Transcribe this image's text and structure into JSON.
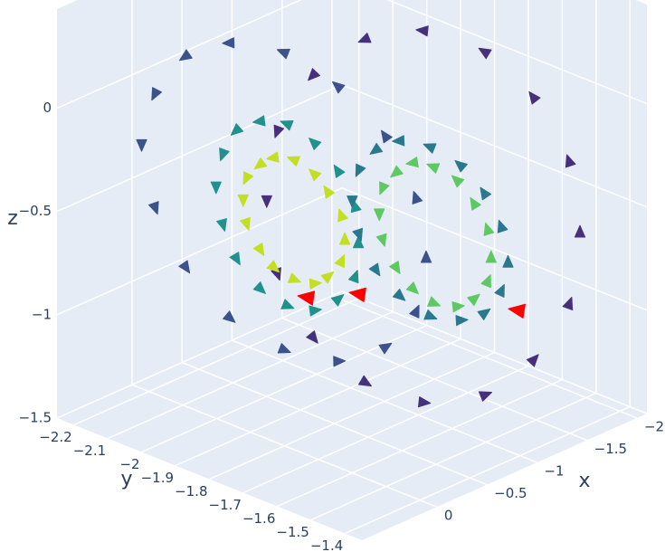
{
  "chart_data": {
    "type": "cone",
    "xlabel": "x",
    "ylabel": "y",
    "zlabel": "z",
    "xlim": [
      0.75,
      -2.1
    ],
    "ylim": [
      -1.35,
      -2.25
    ],
    "zlim": [
      -1.5,
      0.48
    ],
    "xticks": [
      0,
      {
        "value": -0.5,
        "label": "−0.5"
      },
      {
        "value": -1,
        "label": "−1"
      },
      {
        "value": -1.5,
        "label": "−1.5"
      },
      {
        "value": -2,
        "label": "−2"
      }
    ],
    "yticks": [
      {
        "value": -2.2,
        "label": "−2.2"
      },
      {
        "value": -2.1,
        "label": "−2.1"
      },
      {
        "value": -2,
        "label": "−2"
      },
      {
        "value": -1.9,
        "label": "−1.9"
      },
      {
        "value": -1.8,
        "label": "−1.8"
      },
      {
        "value": -1.7,
        "label": "−1.7"
      },
      {
        "value": -1.6,
        "label": "−1.6"
      },
      {
        "value": -1.5,
        "label": "−1.5"
      },
      {
        "value": -1.4,
        "label": "−1.4"
      }
    ],
    "zticks": [
      {
        "value": -1.5,
        "label": "−1.5"
      },
      {
        "value": -1,
        "label": "−1"
      },
      {
        "value": -0.5,
        "label": "−0.5"
      },
      0
    ],
    "grid": true,
    "series": [
      {
        "color": "#46307e",
        "x": [
          -1.6,
          -1.56,
          -1.44,
          -1.26,
          -1.05,
          -0.84,
          -0.66,
          -0.54,
          -0.5,
          -0.54,
          -0.66,
          -0.84,
          -1.05,
          -1.26,
          -1.44,
          -1.56
        ],
        "y": [
          -1.4,
          -1.42,
          -1.49,
          -1.58,
          -1.7,
          -1.81,
          -1.91,
          -1.98,
          -2.0,
          -1.98,
          -1.91,
          -1.81,
          -1.7,
          -1.58,
          -1.49,
          -1.42
        ],
        "z": [
          -0.55,
          -0.21,
          0.08,
          0.28,
          0.35,
          0.28,
          0.08,
          -0.21,
          -0.55,
          -0.9,
          -1.19,
          -1.38,
          -1.45,
          -1.38,
          -1.19,
          -0.9
        ]
      },
      {
        "color": "#3b528b",
        "x": [
          0.04,
          0.04,
          0.04,
          0.04,
          0.04,
          0.04,
          0.04,
          0.04,
          0.04,
          0.04,
          0.04,
          0.04,
          0.04,
          0.04,
          0.04,
          0.04
        ],
        "y": [
          -1.37,
          -1.4,
          -1.49,
          -1.63,
          -1.79,
          -1.95,
          -2.08,
          -2.17,
          -2.21,
          -2.17,
          -2.08,
          -1.95,
          -1.79,
          -1.63,
          -1.49,
          -1.4
        ],
        "z": [
          -0.3,
          -0.03,
          0.21,
          0.36,
          0.42,
          0.36,
          0.21,
          -0.03,
          -0.3,
          -0.58,
          -0.81,
          -0.97,
          -1.02,
          -0.97,
          -0.81,
          -0.58
        ]
      },
      {
        "color": "#21918c",
        "x": [
          0.04,
          0.04,
          0.04,
          0.04,
          0.04,
          0.04,
          0.04,
          0.04,
          0.04,
          0.04,
          0.04,
          0.04,
          0.04,
          0.04,
          0.04,
          0.04
        ],
        "y": [
          -1.57,
          -1.58,
          -1.63,
          -1.7,
          -1.78,
          -1.86,
          -1.93,
          -1.97,
          -1.99,
          -1.97,
          -1.93,
          -1.86,
          -1.78,
          -1.7,
          -1.63,
          -1.58
        ],
        "z": [
          -0.36,
          -0.19,
          -0.05,
          0.04,
          0.08,
          0.04,
          -0.05,
          -0.19,
          -0.36,
          -0.53,
          -0.67,
          -0.77,
          -0.8,
          -0.77,
          -0.67,
          -0.53
        ]
      },
      {
        "color": "#c2df23",
        "x": [
          0.04,
          0.04,
          0.04,
          0.04,
          0.04,
          0.04,
          0.04,
          0.04,
          0.04,
          0.04,
          0.04,
          0.04,
          0.04,
          0.04,
          0.04,
          0.04
        ],
        "y": [
          -1.61,
          -1.62,
          -1.66,
          -1.7,
          -1.76,
          -1.82,
          -1.86,
          -1.9,
          -1.91,
          -1.9,
          -1.86,
          -1.82,
          -1.76,
          -1.7,
          -1.66,
          -1.62
        ],
        "z": [
          -0.37,
          -0.26,
          -0.17,
          -0.11,
          -0.08,
          -0.11,
          -0.17,
          -0.26,
          -0.37,
          -0.48,
          -0.58,
          -0.64,
          -0.66,
          -0.64,
          -0.58,
          -0.48
        ]
      },
      {
        "color": "#2a788e",
        "x": [
          -1.05,
          -1.05,
          -1.05,
          -1.05,
          -1.05,
          -1.05,
          -1.05,
          -1.05,
          -1.05,
          -1.05,
          -1.05,
          -1.05,
          -1.05,
          -1.05,
          -1.05,
          -1.05
        ],
        "y": [
          -1.45,
          -1.47,
          -1.52,
          -1.59,
          -1.68,
          -1.77,
          -1.84,
          -1.89,
          -1.91,
          -1.89,
          -1.84,
          -1.77,
          -1.68,
          -1.59,
          -1.52,
          -1.47
        ],
        "z": [
          -0.61,
          -0.45,
          -0.32,
          -0.23,
          -0.2,
          -0.23,
          -0.32,
          -0.45,
          -0.61,
          -0.76,
          -0.9,
          -0.98,
          -1.02,
          -0.98,
          -0.9,
          -0.76
        ]
      },
      {
        "color": "#5ec962",
        "x": [
          -1.05,
          -1.05,
          -1.05,
          -1.05,
          -1.05,
          -1.05,
          -1.05,
          -1.05,
          -1.05,
          -1.05,
          -1.05,
          -1.05,
          -1.05,
          -1.05,
          -1.05,
          -1.05
        ],
        "y": [
          -1.5,
          -1.51,
          -1.55,
          -1.6,
          -1.67,
          -1.73,
          -1.78,
          -1.82,
          -1.83,
          -1.82,
          -1.78,
          -1.73,
          -1.67,
          -1.6,
          -1.55,
          -1.51
        ],
        "z": [
          -0.62,
          -0.49,
          -0.39,
          -0.31,
          -0.29,
          -0.31,
          -0.39,
          -0.49,
          -0.62,
          -0.74,
          -0.85,
          -0.92,
          -0.95,
          -0.92,
          -0.85,
          -0.74
        ]
      },
      {
        "color": "#ff0000",
        "x": [
          0.04,
          -1.05,
          -1.05
        ],
        "y": [
          -1.72,
          -1.89,
          -1.42
        ],
        "z": [
          -0.72,
          -1.05,
          -0.82
        ]
      }
    ]
  }
}
